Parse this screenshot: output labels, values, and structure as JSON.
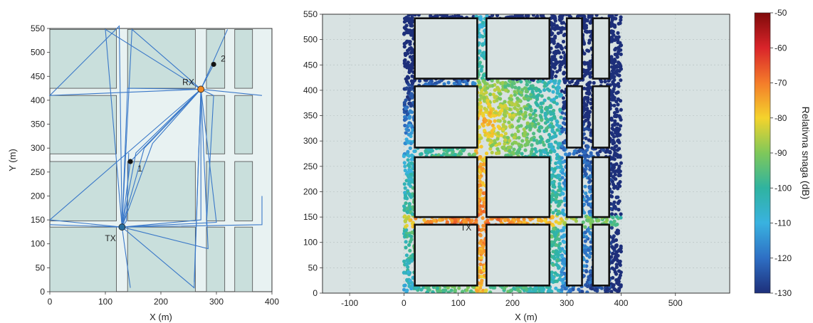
{
  "chart_data": [
    {
      "type": "scatter",
      "xlabel": "X (m)",
      "ylabel": "Y (m)",
      "xlim": [
        0,
        400
      ],
      "ylim": [
        0,
        550
      ],
      "xticks": [
        0,
        100,
        200,
        300,
        400
      ],
      "yticks": [
        0,
        50,
        100,
        150,
        200,
        250,
        300,
        350,
        400,
        450,
        500,
        550
      ],
      "buildings": [
        {
          "x0": 0,
          "x1": 120,
          "y0": 0,
          "y1": 135
        },
        {
          "x0": 140,
          "x1": 262,
          "y0": 0,
          "y1": 135
        },
        {
          "x0": 282,
          "x1": 315,
          "y0": 0,
          "y1": 135
        },
        {
          "x0": 333,
          "x1": 365,
          "y0": 0,
          "y1": 135
        },
        {
          "x0": 0,
          "x1": 120,
          "y0": 148,
          "y1": 272
        },
        {
          "x0": 140,
          "x1": 262,
          "y0": 148,
          "y1": 272
        },
        {
          "x0": 282,
          "x1": 315,
          "y0": 148,
          "y1": 272
        },
        {
          "x0": 333,
          "x1": 365,
          "y0": 148,
          "y1": 272
        },
        {
          "x0": 0,
          "x1": 120,
          "y0": 288,
          "y1": 410
        },
        {
          "x0": 282,
          "x1": 315,
          "y0": 288,
          "y1": 410
        },
        {
          "x0": 333,
          "x1": 365,
          "y0": 288,
          "y1": 410
        },
        {
          "x0": 0,
          "x1": 120,
          "y0": 425,
          "y1": 548
        },
        {
          "x0": 140,
          "x1": 262,
          "y0": 425,
          "y1": 548
        },
        {
          "x0": 282,
          "x1": 315,
          "y0": 425,
          "y1": 548
        },
        {
          "x0": 333,
          "x1": 365,
          "y0": 425,
          "y1": 548
        }
      ],
      "points": [
        {
          "label": "TX",
          "x": 130,
          "y": 135,
          "color": "#2a6f9e"
        },
        {
          "label": "RX",
          "x": 272,
          "y": 423,
          "color": "#f08a24"
        },
        {
          "label": "1",
          "x": 145,
          "y": 272,
          "color": "#111111"
        },
        {
          "label": "2",
          "x": 295,
          "y": 475,
          "color": "#111111"
        }
      ],
      "ray_color": "#3a78c8",
      "background": "#e8f2f2",
      "building_fill": "#c9dfdc"
    },
    {
      "type": "heatmap",
      "xlabel": "X (m)",
      "ylabel": "",
      "xlim": [
        -150,
        600
      ],
      "ylim": [
        0,
        550
      ],
      "xticks": [
        -100,
        0,
        100,
        200,
        300,
        400,
        500
      ],
      "yticks": [
        0,
        50,
        100,
        150,
        200,
        250,
        300,
        350,
        400,
        450,
        500,
        550
      ],
      "grid": true,
      "transmitter": {
        "label": "TX",
        "x": 130,
        "y": 135
      },
      "colorbar": {
        "label": "Relativna snaga (dB)",
        "min": -130,
        "max": -50,
        "ticks": [
          -50,
          -60,
          -70,
          -80,
          -90,
          -100,
          -110,
          -120,
          -130
        ],
        "colors": [
          "#7f0a0a",
          "#d9242a",
          "#f47c2a",
          "#f4d32c",
          "#7fc85a",
          "#2fb3a0",
          "#39b2e0",
          "#2e6fc4",
          "#1d2f7a"
        ]
      },
      "region": {
        "x0": 0,
        "x1": 400,
        "y0": 0,
        "y1": 550
      },
      "buildings": [
        {
          "x0": 20,
          "x1": 135,
          "y0": 15,
          "y1": 135
        },
        {
          "x0": 152,
          "x1": 268,
          "y0": 15,
          "y1": 135
        },
        {
          "x0": 300,
          "x1": 328,
          "y0": 15,
          "y1": 135
        },
        {
          "x0": 348,
          "x1": 378,
          "y0": 15,
          "y1": 135
        },
        {
          "x0": 20,
          "x1": 135,
          "y0": 150,
          "y1": 268
        },
        {
          "x0": 152,
          "x1": 268,
          "y0": 150,
          "y1": 268
        },
        {
          "x0": 300,
          "x1": 328,
          "y0": 150,
          "y1": 268
        },
        {
          "x0": 348,
          "x1": 378,
          "y0": 150,
          "y1": 268
        },
        {
          "x0": 20,
          "x1": 135,
          "y0": 287,
          "y1": 408
        },
        {
          "x0": 300,
          "x1": 328,
          "y0": 287,
          "y1": 408
        },
        {
          "x0": 348,
          "x1": 378,
          "y0": 287,
          "y1": 408
        },
        {
          "x0": 20,
          "x1": 135,
          "y0": 423,
          "y1": 542
        },
        {
          "x0": 152,
          "x1": 268,
          "y0": 423,
          "y1": 542
        },
        {
          "x0": 300,
          "x1": 328,
          "y0": 423,
          "y1": 542
        },
        {
          "x0": 348,
          "x1": 378,
          "y0": 423,
          "y1": 542
        }
      ],
      "background": "#d8e2e2"
    }
  ]
}
